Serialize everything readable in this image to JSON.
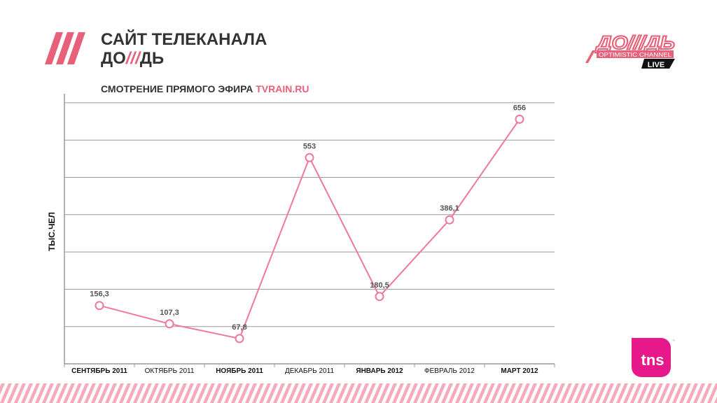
{
  "header": {
    "title_line1": "САЙТ ТЕЛЕКАНАЛА",
    "title_pre": "ДО",
    "title_slashes": "///",
    "title_post": "ДЬ",
    "subtitle_main": "СМОТРЕНИЕ ПРЯМОГО ЭФИРА",
    "subtitle_site": "TVRAIN.RU"
  },
  "logo": {
    "name": "ДО///ДЬ",
    "tagline": "OPTIMISTIC CHANNEL",
    "badge": "LIVE"
  },
  "tns_logo": "tns",
  "colors": {
    "accent": "#e8617a",
    "line": "#f07898",
    "grid": "#9a9a9a"
  },
  "chart_data": {
    "type": "line",
    "categories": [
      "СЕНТЯБРЬ 2011",
      "ОКТЯБРЬ 2011",
      "НОЯБРЬ 2011",
      "ДЕКАБРЬ 2011",
      "ЯНВАРЬ 2012",
      "ФЕВРАЛЬ 2012",
      "МАРТ 2012"
    ],
    "bold_categories": [
      true,
      false,
      true,
      false,
      true,
      false,
      true
    ],
    "values": [
      156.3,
      107.3,
      67.8,
      553,
      180.5,
      386.1,
      656
    ],
    "value_labels": [
      "156,3",
      "107,3",
      "67,8",
      "553",
      "180,5",
      "386,1",
      "656"
    ],
    "ylabel": "ТЫС.ЧЕЛ",
    "ylim": [
      0,
      700
    ],
    "grid": true,
    "gridline_step": 100
  }
}
